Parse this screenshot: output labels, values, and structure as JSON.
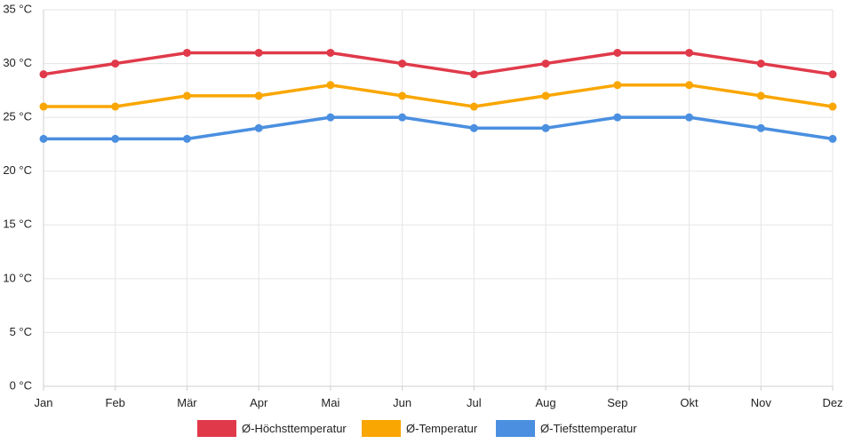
{
  "chart_data": {
    "type": "line",
    "title": "",
    "xlabel": "",
    "ylabel": "",
    "categories": [
      "Jan",
      "Feb",
      "Mär",
      "Apr",
      "Mai",
      "Jun",
      "Jul",
      "Aug",
      "Sep",
      "Okt",
      "Nov",
      "Dez"
    ],
    "ylim": [
      0,
      35
    ],
    "y_ticks": [
      0,
      5,
      10,
      15,
      20,
      25,
      30,
      35
    ],
    "y_unit": "°C",
    "grid": true,
    "legend_position": "bottom",
    "series": [
      {
        "name": "Ø-Höchsttemperatur",
        "color": "#e03a4a",
        "values": [
          29,
          30,
          31,
          31,
          31,
          30,
          29,
          30,
          31,
          31,
          30,
          29
        ]
      },
      {
        "name": "Ø-Temperatur",
        "color": "#f9a602",
        "values": [
          26,
          26,
          27,
          27,
          28,
          27,
          26,
          27,
          28,
          28,
          27,
          26
        ]
      },
      {
        "name": "Ø-Tiefsttemperatur",
        "color": "#4a8fe0",
        "values": [
          23,
          23,
          23,
          24,
          25,
          25,
          24,
          24,
          25,
          25,
          24,
          23
        ]
      }
    ]
  }
}
